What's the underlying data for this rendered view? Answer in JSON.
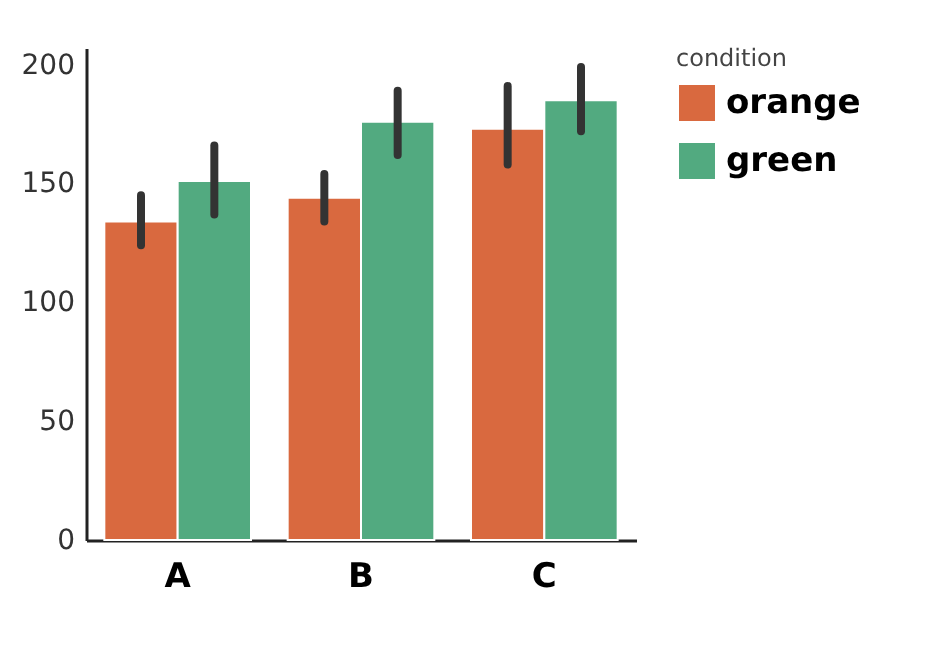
{
  "chart_data": {
    "type": "bar",
    "categories": [
      "A",
      "B",
      "C"
    ],
    "legend_title": "condition",
    "legend": "right",
    "grid": false,
    "ylim": [
      0,
      207
    ],
    "yticks": [
      0,
      50,
      100,
      150,
      200
    ],
    "series": [
      {
        "name": "orange",
        "color": "#d9693f",
        "values": [
          134,
          144,
          173
        ],
        "errors": [
          [
            124,
            145
          ],
          [
            134,
            154
          ],
          [
            158,
            191
          ]
        ]
      },
      {
        "name": "green",
        "color": "#52aa80",
        "values": [
          151,
          176,
          185
        ],
        "errors": [
          [
            137,
            166
          ],
          [
            162,
            189
          ],
          [
            172,
            199
          ]
        ]
      }
    ]
  }
}
